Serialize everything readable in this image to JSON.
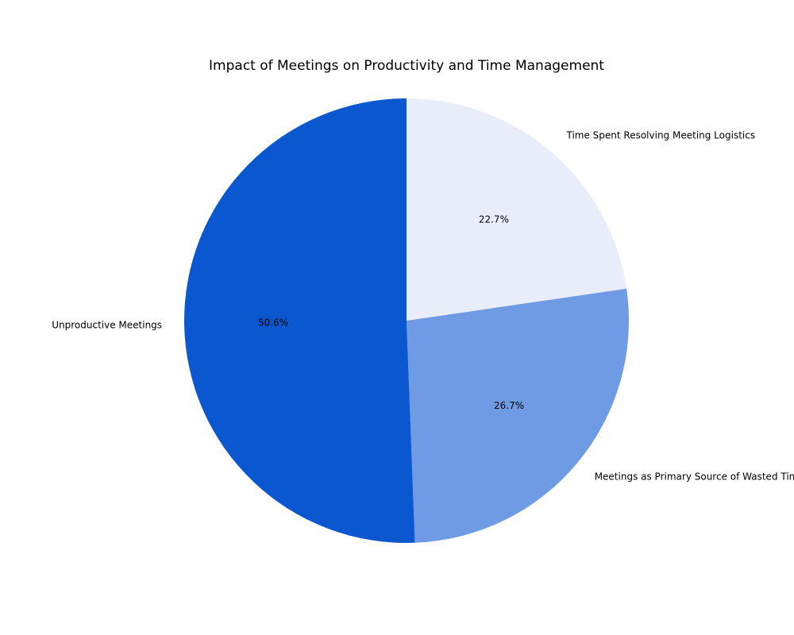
{
  "chart_data": {
    "type": "pie",
    "title": "Impact of Meetings on Productivity and Time Management",
    "slices": [
      {
        "label": "Time Spent Resolving Meeting Logistics",
        "value": 22.7,
        "display": "22.7%",
        "color": "#E8EDF9"
      },
      {
        "label": "Meetings as Primary Source of Wasted Time",
        "value": 26.7,
        "display": "26.7%",
        "color": "#6F9AE4"
      },
      {
        "label": "Unproductive Meetings",
        "value": 50.6,
        "display": "50.6%",
        "color": "#0B57D0"
      }
    ],
    "start_angle_deg": 90,
    "direction": "clockwise",
    "legend": "none"
  }
}
